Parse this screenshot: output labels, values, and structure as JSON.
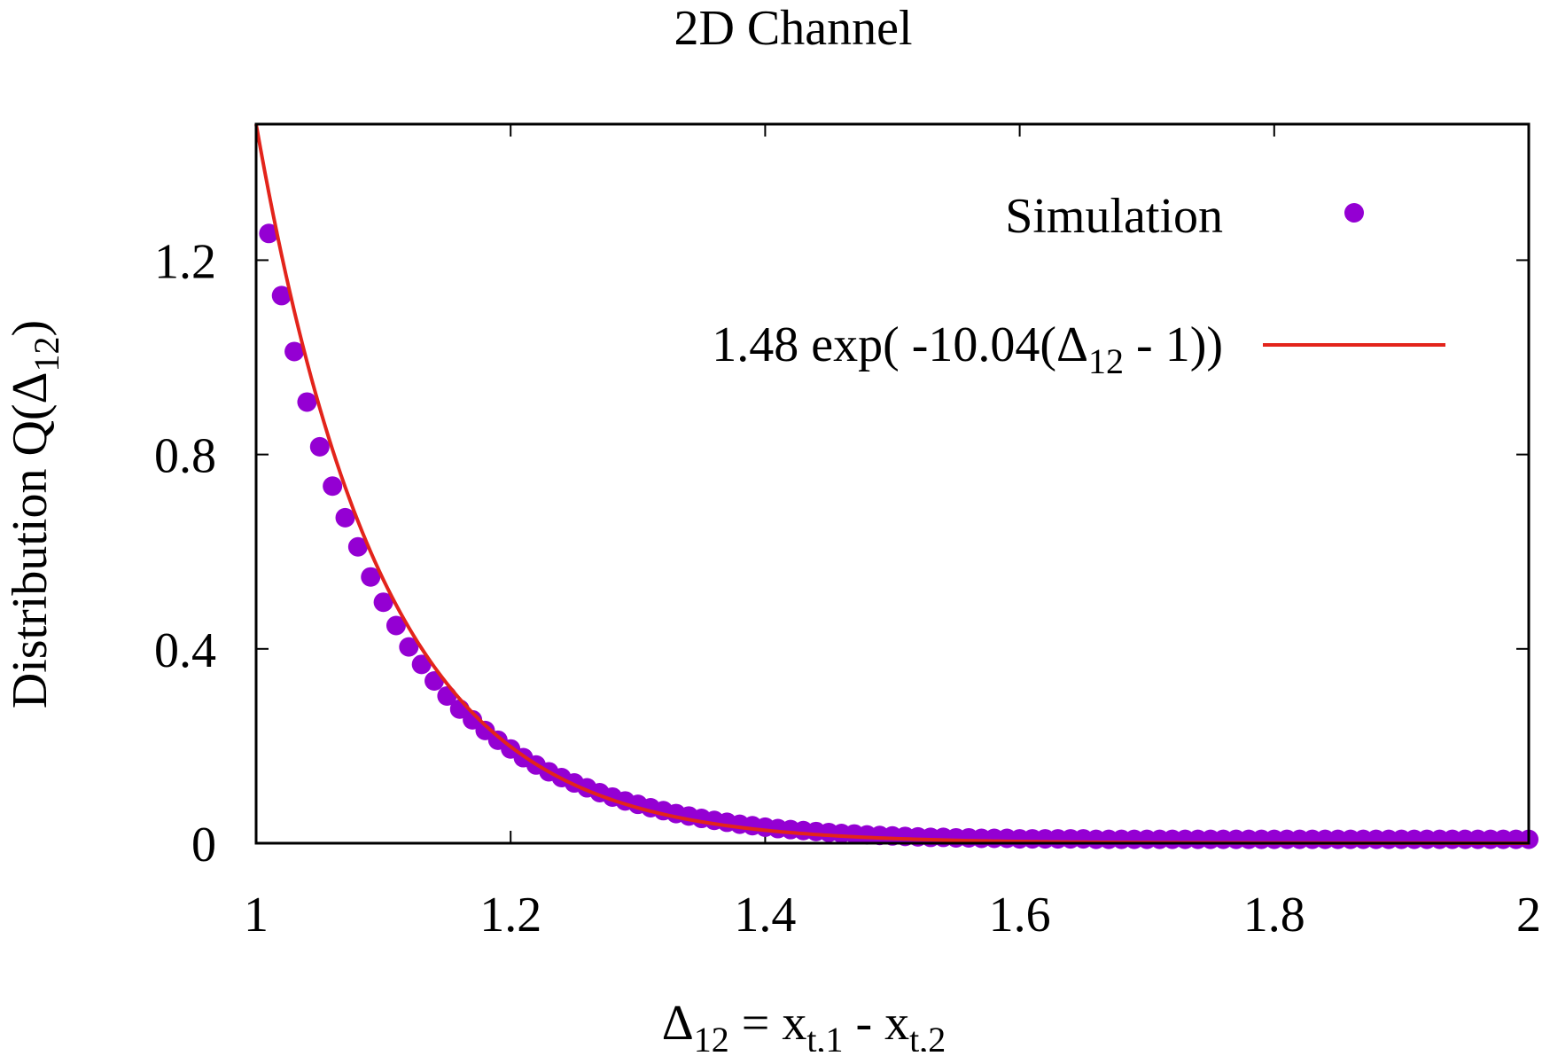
{
  "chart_data": {
    "type": "scatter",
    "title": "2D Channel",
    "xlabel": {
      "main": "Δ",
      "sub": "12",
      "mid": " = x",
      "sub2": "t,1",
      "mid2": " - x",
      "sub3": "t,2"
    },
    "ylabel": {
      "main": "Distribution Q(Δ",
      "sub": "12",
      "end": ")"
    },
    "xlim": [
      1,
      2
    ],
    "ylim": [
      0,
      1.48
    ],
    "xticks": [
      "1",
      "1.2",
      "1.4",
      "1.6",
      "1.8",
      "2"
    ],
    "yticks": [
      "0",
      "0.4",
      "0.8",
      "1.2"
    ],
    "grid": false,
    "legend_position": "top-right",
    "colors": {
      "simulation": "#9400d3",
      "fit": "#e3241b",
      "axes": "#000000"
    },
    "series": [
      {
        "name": "Simulation",
        "kind": "points",
        "x": [
          1.01,
          1.02,
          1.03,
          1.04,
          1.05,
          1.06,
          1.07,
          1.08,
          1.09,
          1.1,
          1.11,
          1.12,
          1.13,
          1.14,
          1.15,
          1.16,
          1.17,
          1.18,
          1.19,
          1.2,
          1.21,
          1.22,
          1.23,
          1.24,
          1.25,
          1.26,
          1.27,
          1.28,
          1.29,
          1.3,
          1.31,
          1.32,
          1.33,
          1.34,
          1.35,
          1.36,
          1.37,
          1.38,
          1.39,
          1.4,
          1.41,
          1.42,
          1.43,
          1.44,
          1.45,
          1.46,
          1.47,
          1.48,
          1.49,
          1.5,
          1.51,
          1.52,
          1.53,
          1.54,
          1.55,
          1.56,
          1.57,
          1.58,
          1.59,
          1.6,
          1.61,
          1.62,
          1.63,
          1.64,
          1.65,
          1.66,
          1.67,
          1.68,
          1.69,
          1.7,
          1.71,
          1.72,
          1.73,
          1.74,
          1.75,
          1.76,
          1.77,
          1.78,
          1.79,
          1.8,
          1.81,
          1.82,
          1.83,
          1.84,
          1.85,
          1.86,
          1.87,
          1.88,
          1.89,
          1.9,
          1.91,
          1.92,
          1.93,
          1.94,
          1.95,
          1.96,
          1.97,
          1.98,
          1.99,
          2.0
        ],
        "y": [
          1.255,
          1.127,
          1.012,
          0.908,
          0.816,
          0.735,
          0.67,
          0.61,
          0.548,
          0.496,
          0.448,
          0.404,
          0.368,
          0.334,
          0.303,
          0.276,
          0.254,
          0.232,
          0.212,
          0.194,
          0.176,
          0.161,
          0.147,
          0.135,
          0.124,
          0.114,
          0.104,
          0.095,
          0.087,
          0.08,
          0.073,
          0.067,
          0.061,
          0.056,
          0.051,
          0.047,
          0.043,
          0.039,
          0.036,
          0.033,
          0.03,
          0.028,
          0.026,
          0.024,
          0.022,
          0.02,
          0.019,
          0.017,
          0.016,
          0.015,
          0.014,
          0.013,
          0.012,
          0.012,
          0.011,
          0.011,
          0.01,
          0.01,
          0.01,
          0.009,
          0.009,
          0.009,
          0.009,
          0.009,
          0.009,
          0.008,
          0.008,
          0.008,
          0.008,
          0.008,
          0.008,
          0.008,
          0.008,
          0.008,
          0.008,
          0.008,
          0.008,
          0.008,
          0.008,
          0.008,
          0.008,
          0.008,
          0.008,
          0.008,
          0.008,
          0.008,
          0.008,
          0.008,
          0.008,
          0.008,
          0.008,
          0.008,
          0.008,
          0.008,
          0.008,
          0.008,
          0.008,
          0.008,
          0.008,
          0.008
        ]
      },
      {
        "name": "1.48 exp( -10.04(Δ12 - 1))",
        "kind": "line",
        "label_parts": {
          "pre": "1.48 exp( -10.04(Δ",
          "sub": "12",
          "post": " - 1))"
        },
        "amplitude": 1.48,
        "rate": 10.04,
        "x0": 1
      }
    ]
  }
}
